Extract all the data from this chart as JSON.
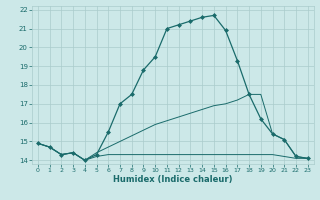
{
  "xlabel": "Humidex (Indice chaleur)",
  "bg_color": "#cce8e8",
  "grid_color": "#aacccc",
  "line_color": "#1a6b6b",
  "xlim": [
    -0.5,
    23.5
  ],
  "ylim": [
    13.8,
    22.2
  ],
  "yticks": [
    14,
    15,
    16,
    17,
    18,
    19,
    20,
    21,
    22
  ],
  "xticks": [
    0,
    1,
    2,
    3,
    4,
    5,
    6,
    7,
    8,
    9,
    10,
    11,
    12,
    13,
    14,
    15,
    16,
    17,
    18,
    19,
    20,
    21,
    22,
    23
  ],
  "line1_x": [
    0,
    1,
    2,
    3,
    4,
    5,
    6,
    7,
    8,
    9,
    10,
    11,
    12,
    13,
    14,
    15,
    16,
    17,
    18,
    19,
    20,
    21,
    22,
    23
  ],
  "line1_y": [
    14.9,
    14.7,
    14.3,
    14.4,
    14.0,
    14.3,
    15.5,
    17.0,
    17.5,
    18.8,
    19.5,
    21.0,
    21.2,
    21.4,
    21.6,
    21.7,
    20.9,
    19.3,
    17.5,
    16.2,
    15.4,
    15.1,
    14.2,
    14.1
  ],
  "line2_x": [
    0,
    1,
    2,
    3,
    4,
    5,
    6,
    7,
    8,
    9,
    10,
    11,
    12,
    13,
    14,
    15,
    16,
    17,
    18,
    19,
    20,
    21,
    22,
    23
  ],
  "line2_y": [
    14.9,
    14.7,
    14.3,
    14.4,
    14.0,
    14.2,
    14.3,
    14.3,
    14.3,
    14.3,
    14.3,
    14.3,
    14.3,
    14.3,
    14.3,
    14.3,
    14.3,
    14.3,
    14.3,
    14.3,
    14.3,
    14.2,
    14.1,
    14.1
  ],
  "line3_x": [
    0,
    1,
    2,
    3,
    4,
    5,
    6,
    7,
    8,
    9,
    10,
    11,
    12,
    13,
    14,
    15,
    16,
    17,
    18,
    19,
    20,
    21,
    22,
    23
  ],
  "line3_y": [
    14.9,
    14.7,
    14.3,
    14.4,
    14.0,
    14.4,
    14.7,
    15.0,
    15.3,
    15.6,
    15.9,
    16.1,
    16.3,
    16.5,
    16.7,
    16.9,
    17.0,
    17.2,
    17.5,
    17.5,
    15.4,
    15.1,
    14.2,
    14.1
  ]
}
